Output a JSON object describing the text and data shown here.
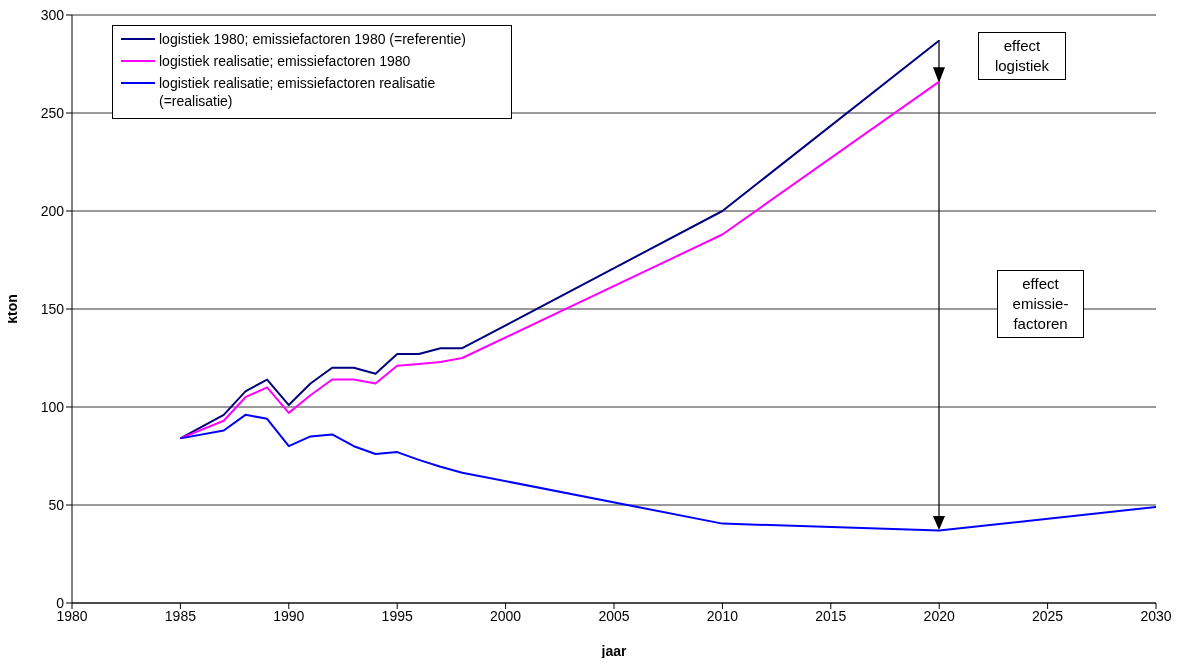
{
  "chart_data": {
    "type": "line",
    "xlabel": "jaar",
    "ylabel": "kton",
    "xlim": [
      1980,
      2030
    ],
    "xticks": [
      1980,
      1985,
      1990,
      1995,
      2000,
      2005,
      2010,
      2015,
      2020,
      2025,
      2030
    ],
    "ylim": [
      0,
      300
    ],
    "yticks": [
      0,
      50,
      100,
      150,
      200,
      250,
      300
    ],
    "grid": "y",
    "legend": "top left",
    "marker": "none",
    "line_style": "solid",
    "series": [
      {
        "name": "logistiek 1980; emissiefactoren 1980 (=referentie)",
        "color": "#000080",
        "x": [
          1985,
          1987,
          1988,
          1989,
          1990,
          1991,
          1992,
          1993,
          1994,
          1995,
          1996,
          1997,
          1998,
          2010,
          2020
        ],
        "values": [
          84,
          96,
          108,
          114,
          101,
          112,
          120,
          120,
          117,
          127,
          127,
          130,
          130,
          200,
          287
        ]
      },
      {
        "name": "logistiek realisatie; emissiefactoren 1980",
        "color": "#ff00ff",
        "x": [
          1985,
          1987,
          1988,
          1989,
          1990,
          1991,
          1992,
          1993,
          1994,
          1995,
          1996,
          1997,
          1998,
          2010,
          2020
        ],
        "values": [
          84,
          93,
          105,
          110,
          97,
          106,
          114,
          114,
          112,
          121,
          122,
          123,
          125,
          188,
          266
        ]
      },
      {
        "name": "logistiek realisatie; emissiefactoren realisatie (=realisatie)",
        "color": "#0000ff",
        "x": [
          1985,
          1987,
          1988,
          1989,
          1990,
          1991,
          1992,
          1993,
          1994,
          1995,
          1996,
          1997,
          1998,
          2010,
          2020,
          2030
        ],
        "values": [
          84,
          88,
          96,
          94,
          80,
          85,
          86,
          80,
          76,
          77,
          73,
          69.5,
          66.5,
          40.5,
          37,
          49
        ]
      }
    ],
    "annotations": [
      "effect logistiek",
      "effect emissie-factoren"
    ]
  }
}
